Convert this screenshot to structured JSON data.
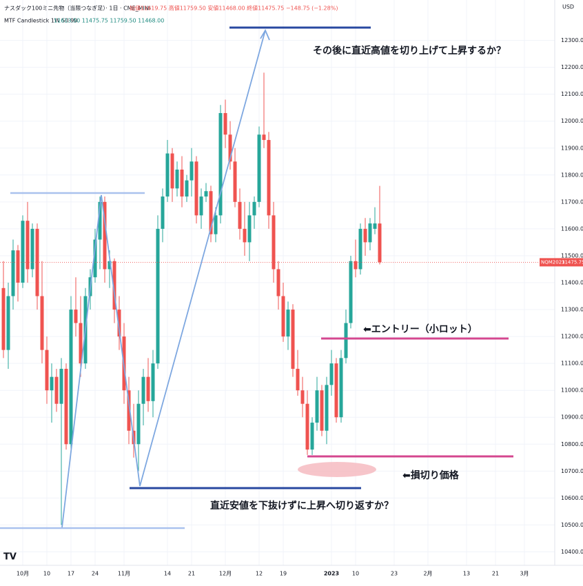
{
  "chart_data": {
    "type": "candlestick",
    "title": "ナスダック100ミニ先物（当限つなぎ足）· 1日 · CME_MINI",
    "ohlc_header": "始値11619.75 高値11759.50 安値11468.00 終値11475.75 −148.75 (−1.28%)",
    "indicator": "MTF Candlestick 1W 50 90",
    "indicator_values": "11613.50 11475.75 11759.50 11468.00",
    "currency": "USD",
    "symbol": "NQM2023",
    "up_color": "#26a69a",
    "down_color": "#ef5350",
    "grid": true,
    "ylim": [
      10350,
      12450
    ],
    "yticks": [
      {
        "value": 10400,
        "label": "10400.00"
      },
      {
        "value": 10500,
        "label": "10500.00"
      },
      {
        "value": 10600,
        "label": "10600.00"
      },
      {
        "value": 10700,
        "label": "10700.00"
      },
      {
        "value": 10800,
        "label": "10800.00"
      },
      {
        "value": 10900,
        "label": "10900.00"
      },
      {
        "value": 11000,
        "label": "11000.00"
      },
      {
        "value": 11100,
        "label": "11100.00"
      },
      {
        "value": 11200,
        "label": "11200.00"
      },
      {
        "value": 11300,
        "label": "11300.00"
      },
      {
        "value": 11400,
        "label": "11400.00"
      },
      {
        "value": 11500,
        "label": "11500.00"
      },
      {
        "value": 11600,
        "label": "11600.00"
      },
      {
        "value": 11700,
        "label": "11700.00"
      },
      {
        "value": 11800,
        "label": "11800.00"
      },
      {
        "value": 11900,
        "label": "11900.00"
      },
      {
        "value": 12000,
        "label": "12000.00"
      },
      {
        "value": 12100,
        "label": "12100.00"
      },
      {
        "value": 12200,
        "label": "12200.00"
      },
      {
        "value": 12300,
        "label": "12300.00"
      }
    ],
    "categories": [
      null,
      null,
      null,
      null,
      "10月",
      null,
      null,
      null,
      null,
      "10",
      null,
      null,
      null,
      null,
      "17",
      null,
      null,
      null,
      null,
      "24",
      null,
      null,
      null,
      null,
      null,
      "11月",
      null,
      null,
      null,
      null,
      null,
      null,
      null,
      null,
      "14",
      null,
      null,
      null,
      null,
      "21",
      null,
      null,
      null,
      null,
      null,
      null,
      "12月",
      null,
      null,
      null,
      null,
      null,
      null,
      "12",
      null,
      null,
      null,
      null,
      "19",
      null,
      null,
      null,
      null,
      null,
      null,
      null,
      null,
      null,
      "2023",
      null,
      null,
      null,
      null,
      "10",
      null,
      null,
      null,
      null,
      null,
      null,
      null,
      "23",
      null,
      null,
      null,
      null,
      null,
      null,
      "2月",
      null,
      null,
      null,
      null,
      null,
      null,
      null,
      "13",
      null,
      null,
      null,
      null,
      null,
      "21",
      null,
      null,
      null,
      null,
      null,
      "3月",
      null,
      null,
      null,
      null
    ],
    "open": [
      11380,
      11150,
      11350,
      11520,
      11400,
      11630,
      11450,
      11600,
      11350,
      11150,
      11000,
      11050,
      10950,
      11080,
      10800,
      11300,
      11250,
      11100,
      11350,
      11420,
      11560,
      11700,
      11450,
      11480,
      11300,
      11200,
      11000,
      10850,
      10800,
      10950,
      11050,
      10960,
      11100,
      11600,
      11720,
      11880,
      11750,
      11820,
      11720,
      11780,
      11850,
      11650,
      11720,
      11740,
      11580,
      11650,
      12030,
      11950,
      11850,
      11700,
      11600,
      11550,
      11650,
      11700,
      11950,
      11930,
      11650,
      11450,
      11350,
      11200,
      11300,
      11080,
      11000,
      10950,
      10780,
      10880,
      11000,
      10850,
      11020,
      11100,
      10900,
      11120,
      11250,
      11480,
      11450,
      11600,
      11550,
      11600,
      11619.75,
      null,
      null,
      null,
      null,
      null,
      null,
      null,
      null,
      null,
      null,
      null,
      null,
      null,
      null,
      null,
      null,
      null,
      null,
      null,
      null,
      null,
      null,
      null,
      null,
      null,
      null,
      null,
      null,
      null,
      null,
      null,
      null,
      null,
      null
    ],
    "high": [
      11480,
      11400,
      11560,
      11540,
      11650,
      11700,
      11620,
      11620,
      11480,
      11200,
      11100,
      11080,
      11120,
      11100,
      11350,
      11420,
      11350,
      11380,
      11450,
      11600,
      11720,
      11720,
      11520,
      11490,
      11350,
      11250,
      11050,
      10950,
      11000,
      11080,
      11120,
      11150,
      11650,
      11750,
      11930,
      11900,
      11850,
      11870,
      11800,
      11900,
      11870,
      11750,
      11770,
      11760,
      11680,
      12060,
      12080,
      12000,
      11900,
      11750,
      11700,
      11700,
      11720,
      11980,
      12180,
      11960,
      11700,
      11480,
      11400,
      11330,
      11320,
      11150,
      11050,
      11000,
      10900,
      11050,
      11020,
      11050,
      11150,
      11120,
      11150,
      11300,
      11500,
      11560,
      11620,
      11640,
      11640,
      11680,
      11759.5,
      null,
      null,
      null,
      null,
      null,
      null,
      null,
      null,
      null,
      null,
      null,
      null,
      null,
      null,
      null,
      null,
      null,
      null,
      null,
      null,
      null,
      null,
      null,
      null,
      null,
      null,
      null,
      null,
      null,
      null,
      null,
      null,
      null,
      null
    ],
    "low": [
      11120,
      11080,
      11300,
      11330,
      11380,
      11400,
      11420,
      11300,
      11100,
      10950,
      10880,
      10920,
      10500,
      10780,
      10780,
      11200,
      11050,
      11080,
      11300,
      11400,
      11450,
      11400,
      11380,
      11250,
      11150,
      10950,
      10800,
      10750,
      10700,
      10870,
      10920,
      10900,
      11080,
      11550,
      11700,
      11700,
      11720,
      11680,
      11700,
      11720,
      11620,
      11600,
      11700,
      11550,
      11550,
      11620,
      11900,
      11820,
      11680,
      11560,
      11500,
      11480,
      11600,
      11680,
      11900,
      11600,
      11400,
      11300,
      11180,
      11150,
      11050,
      10980,
      10900,
      10760,
      10760,
      10850,
      10830,
      10800,
      10980,
      10880,
      10880,
      11100,
      11230,
      11420,
      11430,
      11500,
      11520,
      11580,
      11468,
      null,
      null,
      null,
      null,
      null,
      null,
      null,
      null,
      null,
      null,
      null,
      null,
      null,
      null,
      null,
      null,
      null,
      null,
      null,
      null,
      null,
      null,
      null,
      null,
      null,
      null,
      null,
      null,
      null,
      null,
      null,
      null,
      null,
      null
    ],
    "close": [
      11150,
      11350,
      11520,
      11400,
      11630,
      11450,
      11600,
      11350,
      11150,
      11000,
      11050,
      10950,
      11080,
      10800,
      11300,
      11250,
      11100,
      11350,
      11420,
      11560,
      11700,
      11450,
      11480,
      11300,
      11200,
      11000,
      10850,
      10800,
      10950,
      11050,
      10960,
      11100,
      11600,
      11720,
      11880,
      11750,
      11820,
      11720,
      11780,
      11850,
      11650,
      11720,
      11740,
      11580,
      11650,
      12030,
      11950,
      11850,
      11700,
      11600,
      11550,
      11650,
      11700,
      11950,
      11930,
      11650,
      11450,
      11350,
      11200,
      11300,
      11080,
      11000,
      10950,
      10780,
      10880,
      11000,
      10850,
      11020,
      11100,
      10900,
      11120,
      11250,
      11480,
      11450,
      11600,
      11550,
      11620,
      11620,
      11475.75,
      null,
      null,
      null,
      null,
      null,
      null,
      null,
      null,
      null,
      null,
      null,
      null,
      null,
      null,
      null,
      null,
      null,
      null,
      null,
      null,
      null,
      null,
      null,
      null,
      null,
      null,
      null,
      null,
      null,
      null,
      null,
      null,
      null,
      null
    ],
    "annotations": [
      "その後に直近高値を切り上げて上昇するか？",
      "⬅エントリー（小ロット）",
      "⬅損切り価格",
      "直近安値を下抜けずに上昇へ切り返すか？"
    ]
  }
}
